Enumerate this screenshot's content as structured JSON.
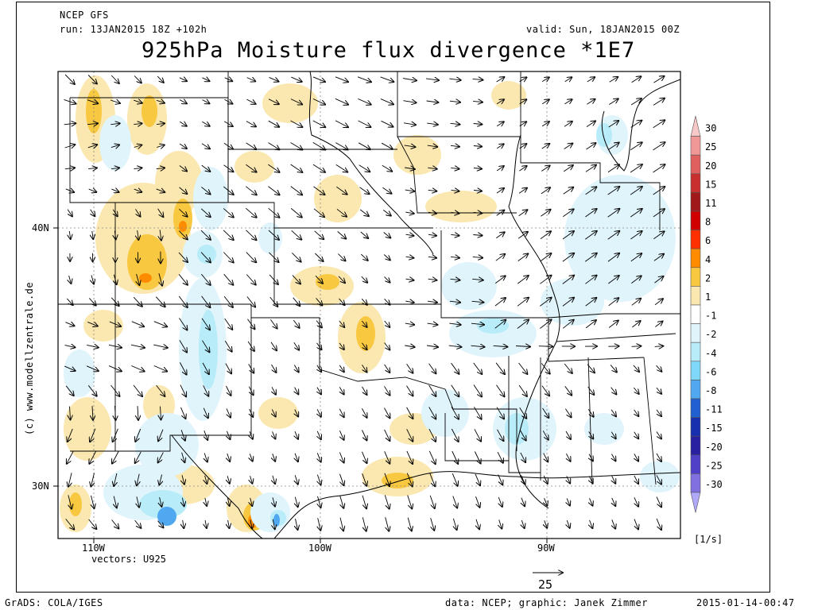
{
  "header": {
    "model": "NCEP GFS",
    "run": "run: 13JAN2015 18Z +102h",
    "valid": "valid: Sun, 18JAN2015 00Z",
    "title": "925hPa Moisture flux divergence *1E7"
  },
  "side_credit": "(c) www.modellzentrale.de",
  "axes": {
    "lat_labels": [
      "40N",
      "30N"
    ],
    "lon_labels": [
      "110W",
      "100W",
      "90W"
    ]
  },
  "vectors_label": "vectors: U925",
  "reference_vector": {
    "value": "25"
  },
  "colorbar": {
    "unit": "[1/s]",
    "levels": [
      "30",
      "25",
      "20",
      "15",
      "11",
      "8",
      "6",
      "4",
      "2",
      "1",
      "-1",
      "-2",
      "-4",
      "-6",
      "-8",
      "-11",
      "-15",
      "-20",
      "-25",
      "-30"
    ],
    "colors": [
      "#f8c8c8",
      "#f09898",
      "#e06060",
      "#c83030",
      "#a01818",
      "#d00000",
      "#ff3000",
      "#ff8c00",
      "#f8c840",
      "#fbe8b0",
      "#ffffff",
      "#e0f4fc",
      "#b8ecf8",
      "#80d8f8",
      "#50a8f0",
      "#2060d0",
      "#1830b0",
      "#2820a0",
      "#5040c8",
      "#8070e0",
      "#b0a8f8"
    ]
  },
  "footer": {
    "left": "GrADS: COLA/IGES",
    "center": "data: NCEP; graphic: Janek Zimmer",
    "right": "2015-01-14-00:47"
  },
  "colors": {
    "positive": "#fbe8b0",
    "positive_strong": "#f8c840",
    "peak": "#ff8c00",
    "negative": "#e0f4fc",
    "negative_strong": "#b8ecf8",
    "neg_peak": "#50a8f0"
  }
}
